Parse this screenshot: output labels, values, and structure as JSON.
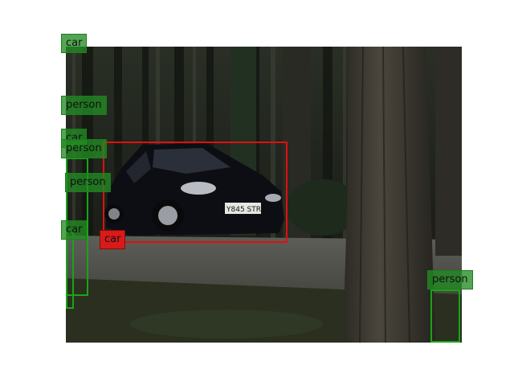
{
  "image": {
    "description_colors": {
      "forest": "#1d2018",
      "road": "#55564f",
      "ground": "#2b3021"
    }
  },
  "colors": {
    "highlight": "#e01010",
    "other": "#19a319"
  },
  "detections": [
    {
      "label": "car"
    },
    {
      "label": "person"
    },
    {
      "label": "car"
    },
    {
      "label": "person"
    },
    {
      "label": "person"
    },
    {
      "label": "car"
    },
    {
      "label": "person"
    },
    {
      "label": "car"
    }
  ]
}
